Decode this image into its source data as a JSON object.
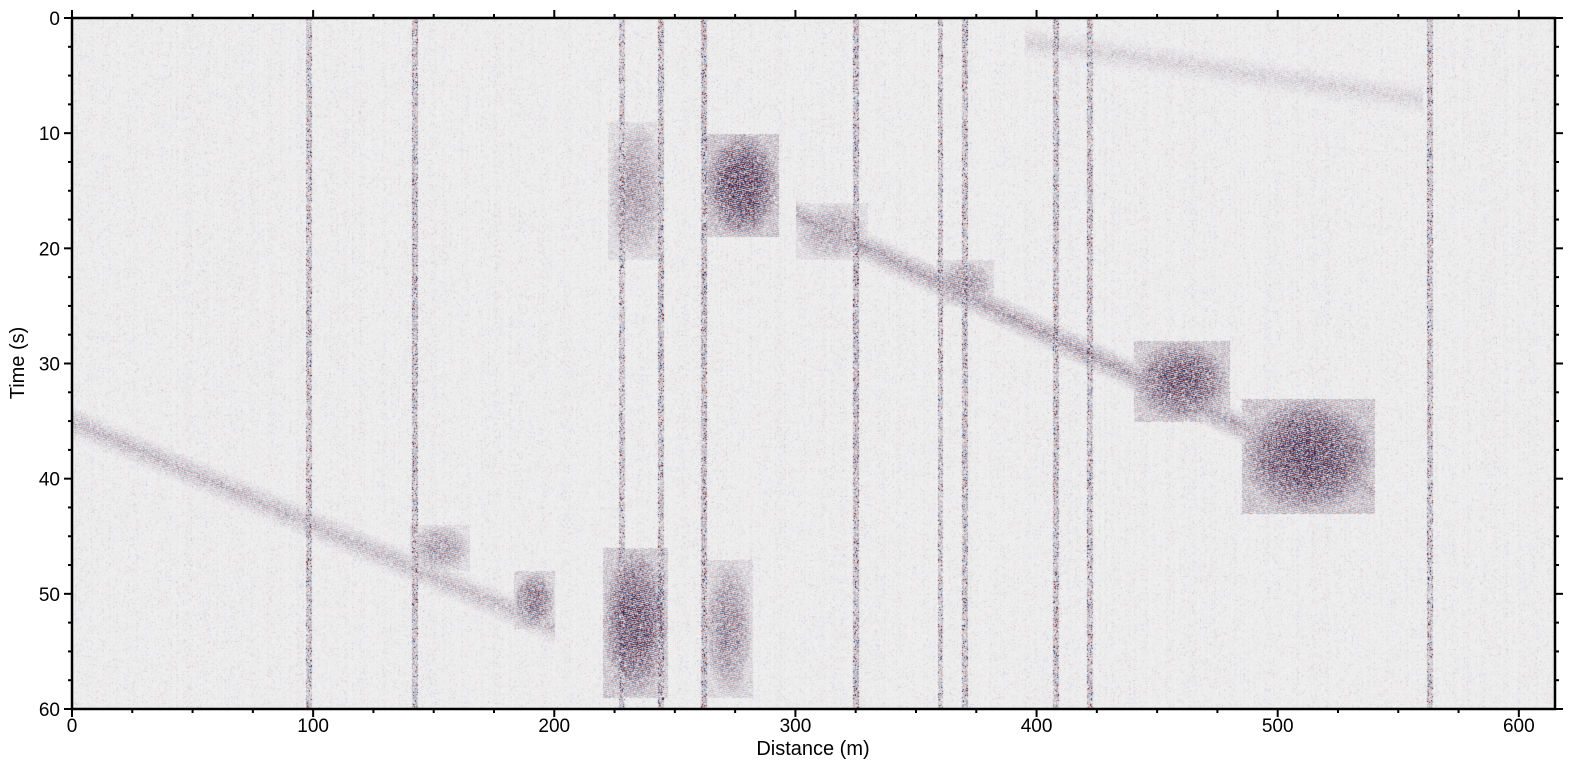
{
  "chart_data": {
    "type": "heatmap",
    "title": "",
    "xlabel": "Distance (m)",
    "ylabel": "Time (s)",
    "xlim": [
      0,
      615
    ],
    "ylim": [
      60,
      0
    ],
    "x_ticks": [
      0,
      100,
      200,
      300,
      400,
      500,
      600
    ],
    "y_ticks": [
      0,
      10,
      20,
      30,
      40,
      50,
      60
    ],
    "y_axis_inverted": true,
    "grid": false,
    "colormap": {
      "name": "diverging red-white-blue",
      "negative": "#0a2a6b",
      "zero": "#f2f2f2",
      "positive": "#6b0a0f"
    },
    "events": [
      {
        "x": [
          0,
          200
        ],
        "t": [
          35,
          53
        ],
        "amplitude": 0.35
      },
      {
        "x": [
          300,
          540
        ],
        "t": [
          17,
          41
        ],
        "amplitude": 0.5
      },
      {
        "x": [
          395,
          560
        ],
        "t": [
          2,
          7
        ],
        "amplitude": 0.2
      }
    ],
    "strong_patches": [
      {
        "x": [
          262,
          293
        ],
        "t": [
          10,
          19
        ],
        "amplitude": 1.0
      },
      {
        "x": [
          222,
          245
        ],
        "t": [
          9,
          21
        ],
        "amplitude": 0.5
      },
      {
        "x": [
          300,
          330
        ],
        "t": [
          16,
          21
        ],
        "amplitude": 0.45
      },
      {
        "x": [
          358,
          382
        ],
        "t": [
          21,
          25
        ],
        "amplitude": 0.55
      },
      {
        "x": [
          440,
          480
        ],
        "t": [
          28,
          35
        ],
        "amplitude": 0.9
      },
      {
        "x": [
          485,
          540
        ],
        "t": [
          33,
          43
        ],
        "amplitude": 1.0
      },
      {
        "x": [
          183,
          200
        ],
        "t": [
          48,
          53
        ],
        "amplitude": 0.7
      },
      {
        "x": [
          220,
          247
        ],
        "t": [
          46,
          59
        ],
        "amplitude": 0.9
      },
      {
        "x": [
          262,
          282
        ],
        "t": [
          47,
          59
        ],
        "amplitude": 0.6
      },
      {
        "x": [
          140,
          165
        ],
        "t": [
          44,
          48
        ],
        "amplitude": 0.5
      }
    ],
    "noisy_traces": [
      98,
      142,
      228,
      244,
      262,
      325,
      360,
      370,
      408,
      422,
      563
    ]
  }
}
